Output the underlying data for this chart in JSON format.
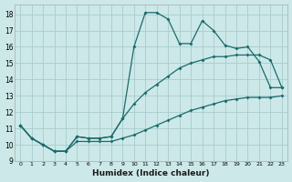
{
  "xlabel": "Humidex (Indice chaleur)",
  "background_color": "#cce8e8",
  "line_color": "#1a6b6b",
  "grid_color": "#aacccc",
  "xlim": [
    -0.5,
    23.5
  ],
  "ylim": [
    9,
    18.6
  ],
  "xticks": [
    0,
    1,
    2,
    3,
    4,
    5,
    6,
    7,
    8,
    9,
    10,
    11,
    12,
    13,
    14,
    15,
    16,
    17,
    18,
    19,
    20,
    21,
    22,
    23
  ],
  "yticks": [
    9,
    10,
    11,
    12,
    13,
    14,
    15,
    16,
    17,
    18
  ],
  "line_top_x": [
    0,
    1,
    2,
    3,
    4,
    5,
    6,
    7,
    8,
    9,
    10,
    11,
    12,
    13,
    14,
    15,
    16,
    17,
    18,
    19,
    20,
    21,
    22,
    23
  ],
  "line_top_y": [
    11.2,
    10.4,
    10.0,
    9.6,
    9.6,
    10.5,
    10.4,
    10.4,
    10.5,
    11.6,
    16.0,
    18.1,
    18.1,
    17.7,
    16.2,
    16.2,
    17.6,
    17.0,
    16.1,
    15.9,
    16.0,
    15.1,
    13.5,
    13.5
  ],
  "line_mid_x": [
    0,
    1,
    2,
    3,
    4,
    5,
    6,
    7,
    8,
    9,
    10,
    11,
    12,
    13,
    14,
    15,
    16,
    17,
    18,
    19,
    20,
    21,
    22,
    23
  ],
  "line_mid_y": [
    11.2,
    10.4,
    10.0,
    9.6,
    9.6,
    10.5,
    10.4,
    10.4,
    10.5,
    11.6,
    12.5,
    13.2,
    13.7,
    14.2,
    14.7,
    15.0,
    15.2,
    15.4,
    15.4,
    15.5,
    15.5,
    15.5,
    15.2,
    13.5
  ],
  "line_bot_x": [
    0,
    1,
    2,
    3,
    4,
    5,
    6,
    7,
    8,
    9,
    10,
    11,
    12,
    13,
    14,
    15,
    16,
    17,
    18,
    19,
    20,
    21,
    22,
    23
  ],
  "line_bot_y": [
    11.2,
    10.4,
    10.0,
    9.6,
    9.6,
    10.2,
    10.2,
    10.2,
    10.2,
    10.4,
    10.6,
    10.9,
    11.2,
    11.5,
    11.8,
    12.1,
    12.3,
    12.5,
    12.7,
    12.8,
    12.9,
    12.9,
    12.9,
    13.0
  ]
}
